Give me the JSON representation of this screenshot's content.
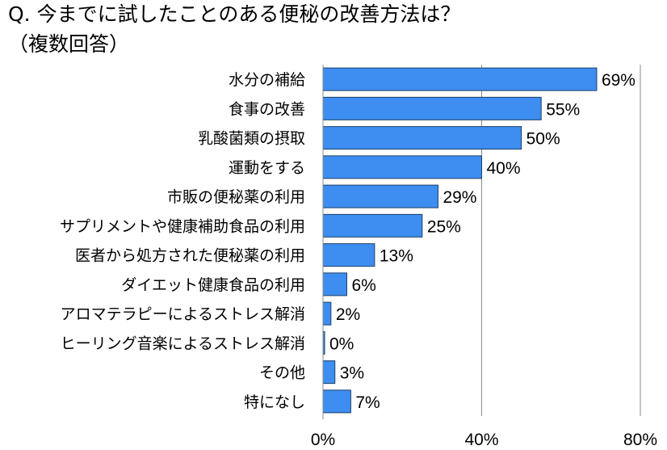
{
  "title_line1": "Q. 今までに試したことのある便秘の改善方法は？",
  "title_line2": "（複数回答）",
  "colors": {
    "bar_fill": "#3d8ef0",
    "bar_stroke": "#1f3f66",
    "gridline": "#8c8c8c",
    "axis": "#888888"
  },
  "chart_data": {
    "type": "bar",
    "orientation": "horizontal",
    "categories": [
      "水分の補給",
      "食事の改善",
      "乳酸菌類の摂取",
      "運動をする",
      "市販の便秘薬の利用",
      "サプリメントや健康補助食品の利用",
      "医者から処方された便秘薬の利用",
      "ダイエット健康食品の利用",
      "アロマテラピーによるストレス解消",
      "ヒーリング音楽によるストレス解消",
      "その他",
      "特になし"
    ],
    "values": [
      69,
      55,
      50,
      40,
      29,
      25,
      13,
      6,
      2,
      0,
      3,
      7
    ],
    "value_labels": [
      "69%",
      "55%",
      "50%",
      "40%",
      "29%",
      "25%",
      "13%",
      "6%",
      "2%",
      "0%",
      "3%",
      "7%"
    ],
    "xlim": [
      0,
      80
    ],
    "xticks": [
      0,
      40,
      80
    ],
    "xtick_labels": [
      "0%",
      "40%",
      "80%"
    ],
    "grid": true
  }
}
